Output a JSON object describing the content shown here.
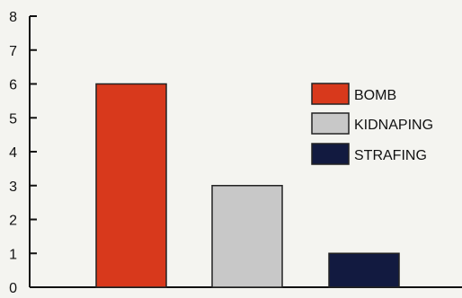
{
  "chart_data": {
    "type": "bar",
    "title": "",
    "xlabel": "",
    "ylabel": "",
    "ylim": [
      0,
      8
    ],
    "yticks": [
      0,
      1,
      2,
      3,
      4,
      5,
      6,
      7,
      8
    ],
    "grid": false,
    "legend_position": "right",
    "categories": [
      "BOMB",
      "KIDNAPING",
      "STRAFING"
    ],
    "values": [
      6,
      3,
      1
    ],
    "colors": [
      "#d8391c",
      "#c8c8c8",
      "#121a40"
    ]
  }
}
